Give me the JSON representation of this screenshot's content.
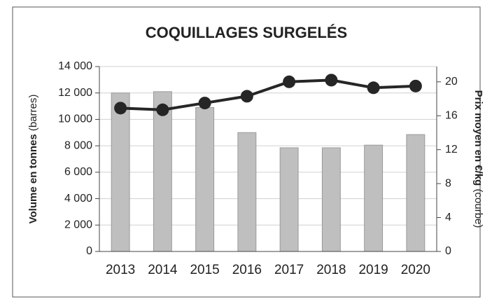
{
  "chart_data": {
    "type": "bar-line",
    "title": "COQUILLAGES SURGELÉS",
    "y_label": {
      "main": "Volume en tonnes",
      "note": "(barres)"
    },
    "y2_label": {
      "main": "Prix moyen en €/kg",
      "note": "(courbe)"
    },
    "categories": [
      "2013",
      "2014",
      "2015",
      "2016",
      "2017",
      "2018",
      "2019",
      "2020"
    ],
    "series": [
      {
        "name": "Volume",
        "kind": "bar",
        "color": "#bfbfbf",
        "values": [
          12000,
          12100,
          10900,
          9000,
          7850,
          7850,
          8050,
          8850
        ]
      },
      {
        "name": "Prix moyen",
        "kind": "line",
        "axis": "y2",
        "color": "#262626",
        "values": [
          16.9,
          16.7,
          17.5,
          18.3,
          20.0,
          20.2,
          19.3,
          19.5
        ]
      }
    ],
    "ylim": [
      0,
      14000
    ],
    "yticks": [
      0,
      {
        "value": 2000,
        "label": "2 000"
      },
      {
        "value": 4000,
        "label": "4 000"
      },
      {
        "value": 6000,
        "label": "6 000"
      },
      {
        "value": 8000,
        "label": "8 000"
      },
      {
        "value": 10000,
        "label": "10 000"
      },
      {
        "value": 12000,
        "label": "12 000"
      },
      {
        "value": 14000,
        "label": "14 000"
      }
    ],
    "y2lim": [
      0,
      21.8
    ],
    "y2ticks": [
      0,
      4,
      8,
      12,
      16,
      20
    ],
    "grid": true
  }
}
